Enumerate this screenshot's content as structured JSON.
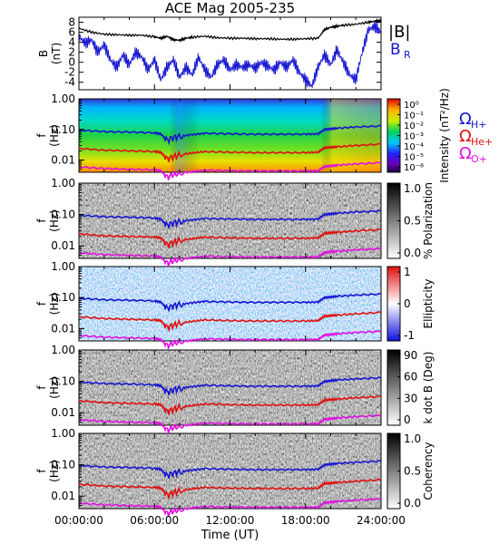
{
  "chart_data": [
    {
      "type": "line",
      "panel": "magnetic-field",
      "title": "ACE Mag 2005-235",
      "ylabel": "B (nT)",
      "ylim": [
        -5.5,
        9
      ],
      "yticks": [
        "8",
        "6",
        "4",
        "2",
        "0",
        "-2",
        "-4"
      ],
      "legend": [
        {
          "label": "|B|",
          "color": "#000000"
        },
        {
          "label": "B",
          "sub": "R",
          "color": "#1515d0"
        }
      ],
      "series": [
        {
          "name": "|B|",
          "x": [
            0,
            1,
            2,
            3,
            4,
            5,
            6,
            6.5,
            7,
            7.5,
            8,
            8.5,
            9,
            10,
            11,
            12,
            13,
            14,
            15,
            16,
            17,
            18,
            19,
            19.5,
            20,
            20.5,
            21,
            22,
            23,
            23.5,
            24
          ],
          "values": [
            6.8,
            6.0,
            5.6,
            5.5,
            5.4,
            5.4,
            5.1,
            4.8,
            5.2,
            4.5,
            4.4,
            4.8,
            5.0,
            5.2,
            4.9,
            4.8,
            4.8,
            4.7,
            4.7,
            4.6,
            4.6,
            4.7,
            4.8,
            6.5,
            7.0,
            7.2,
            7.4,
            7.6,
            8.0,
            8.2,
            8.3
          ],
          "color": "#000000"
        },
        {
          "name": "B_R",
          "x": [
            0,
            0.5,
            1,
            1.5,
            2,
            2.5,
            3,
            3.5,
            4,
            4.5,
            5,
            5.5,
            6,
            6.5,
            7,
            7.5,
            8,
            8.5,
            9,
            9.5,
            10,
            10.5,
            11,
            11.5,
            12,
            12.5,
            13,
            13.5,
            14,
            14.5,
            15,
            15.5,
            16,
            16.5,
            17,
            17.5,
            18,
            18.5,
            19,
            19.5,
            20,
            20.5,
            21,
            21.5,
            22,
            22.5,
            23,
            23.5,
            24
          ],
          "values": [
            5.2,
            3.8,
            4.5,
            2.0,
            3.5,
            0.5,
            -1.0,
            1.5,
            -0.5,
            2.0,
            1.0,
            -1.5,
            0.5,
            -3.5,
            -1.0,
            0.5,
            -3.0,
            -1.0,
            -2.5,
            1.0,
            -1.5,
            -3.0,
            -0.5,
            0.5,
            -1.5,
            -0.5,
            -1.0,
            -0.5,
            -1.2,
            0.0,
            -0.8,
            -1.5,
            0.0,
            -1.0,
            0.5,
            -2.0,
            -3.5,
            -4.8,
            -1.0,
            1.5,
            -0.5,
            2.5,
            0.0,
            -2.5,
            -3.5,
            2.0,
            6.5,
            7.2,
            6.0
          ],
          "color": "#1515d0"
        }
      ]
    },
    {
      "type": "heatmap",
      "panel": "power-spectrum",
      "ylabel": "f (Hz)",
      "yscale": "log",
      "ylim": [
        0.004,
        1.0
      ],
      "yticks": [
        "1.00",
        "0.10",
        "0.01"
      ],
      "colorbar": {
        "label": "Intensity (nT²/Hz)",
        "ticks": [
          "10⁰",
          "10⁻¹",
          "10⁻²",
          "10⁻³",
          "10⁻⁴",
          "10⁻⁵",
          "10⁻⁶"
        ],
        "scale": "rainbow"
      },
      "overlay_legend": [
        {
          "label": "Ω",
          "sub": "H+",
          "color": "#1515d0"
        },
        {
          "label": "Ω",
          "sub": "He+",
          "color": "#e01010"
        },
        {
          "label": "Ω",
          "sub": "O+",
          "color": "#e010e0"
        }
      ]
    },
    {
      "type": "heatmap",
      "panel": "polarization",
      "ylabel": "f (Hz)",
      "yscale": "log",
      "yticks": [
        "1.00",
        "0.10",
        "0.01"
      ],
      "colorbar": {
        "label": "% Polarization",
        "ticks": [
          "1.0",
          "0.5",
          "0.0"
        ],
        "scale": "gray"
      }
    },
    {
      "type": "heatmap",
      "panel": "ellipticity",
      "ylabel": "f (Hz)",
      "yscale": "log",
      "yticks": [
        "1.00",
        "0.10",
        "0.01"
      ],
      "colorbar": {
        "label": "Ellipticity",
        "ticks": [
          "1",
          "0",
          "-1"
        ],
        "scale": "blue-white-red"
      }
    },
    {
      "type": "heatmap",
      "panel": "wave-normal-angle",
      "ylabel": "f (Hz)",
      "yscale": "log",
      "yticks": [
        "1.00",
        "0.10",
        "0.01"
      ],
      "colorbar": {
        "label": "k dot B (Deg)",
        "ticks": [
          "90",
          "60",
          "30",
          "0"
        ],
        "scale": "gray"
      }
    },
    {
      "type": "heatmap",
      "panel": "coherency",
      "ylabel": "f (Hz)",
      "yscale": "log",
      "yticks": [
        "1.00",
        "0.10",
        "0.01"
      ],
      "colorbar": {
        "label": "Coherency",
        "ticks": [
          "1.0",
          "0.5",
          "0.0"
        ],
        "scale": "gray"
      }
    }
  ],
  "gyrofrequency_lines": {
    "x": [
      0,
      2,
      4,
      6,
      6.5,
      7,
      7.5,
      8,
      9,
      10,
      12,
      14,
      16,
      18,
      19,
      19.5,
      20,
      20.5,
      22,
      24
    ],
    "H+": [
      0.095,
      0.085,
      0.082,
      0.078,
      0.072,
      0.045,
      0.055,
      0.06,
      0.068,
      0.075,
      0.072,
      0.07,
      0.07,
      0.07,
      0.072,
      0.1,
      0.105,
      0.11,
      0.12,
      0.13
    ],
    "He+": [
      0.024,
      0.021,
      0.02,
      0.019,
      0.018,
      0.011,
      0.013,
      0.015,
      0.017,
      0.019,
      0.018,
      0.0175,
      0.0175,
      0.0175,
      0.018,
      0.025,
      0.026,
      0.027,
      0.03,
      0.033
    ],
    "O+": [
      0.006,
      0.0053,
      0.005,
      0.0048,
      0.0045,
      0.0028,
      0.0034,
      0.0037,
      0.0042,
      0.0047,
      0.0045,
      0.0044,
      0.0044,
      0.0044,
      0.0045,
      0.0062,
      0.0065,
      0.0068,
      0.0075,
      0.0082
    ]
  },
  "x_axis": {
    "label": "Time (UT)",
    "range": [
      0,
      24
    ],
    "ticks": [
      "00:00:00",
      "06:00:00",
      "12:00:00",
      "18:00:00",
      "24:00:00"
    ]
  }
}
